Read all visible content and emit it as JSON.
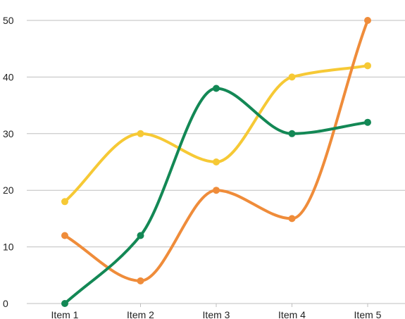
{
  "chart_data": {
    "type": "line",
    "smooth": true,
    "categories": [
      "Item 1",
      "Item 2",
      "Item 3",
      "Item 4",
      "Item 5"
    ],
    "series": [
      {
        "key": "yellow",
        "color": "#F6C935",
        "values": [
          18,
          30,
          25,
          40,
          42
        ]
      },
      {
        "key": "orange",
        "color": "#EF8C3A",
        "values": [
          12,
          4,
          20,
          15,
          50
        ]
      },
      {
        "key": "green",
        "color": "#138855",
        "values": [
          0,
          12,
          38,
          30,
          32
        ]
      }
    ],
    "y_ticks": [
      0,
      10,
      20,
      30,
      40,
      50
    ],
    "ylim": [
      0,
      50
    ],
    "grid": true,
    "legend": "none",
    "title": "",
    "xlabel": "",
    "ylabel": ""
  }
}
